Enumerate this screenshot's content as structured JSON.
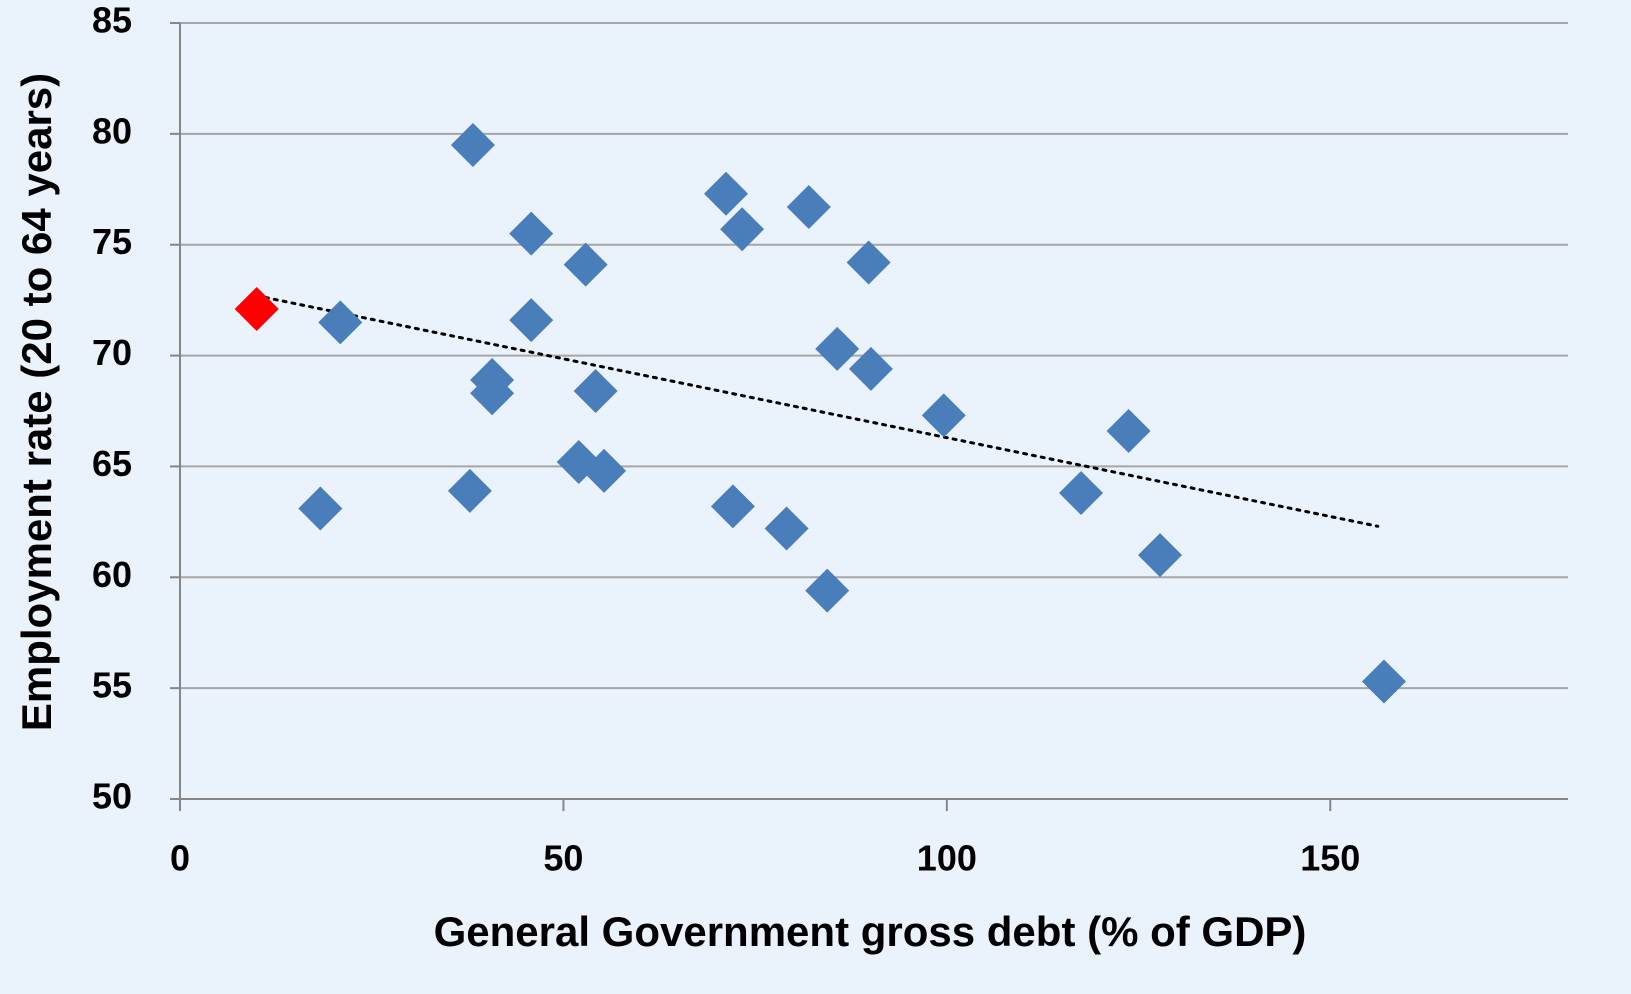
{
  "chart_data": {
    "type": "scatter",
    "xlabel": "General Government gross debt (% of GDP)",
    "ylabel": "Employment rate (20 to 64 years)",
    "xlim": [
      0,
      181
    ],
    "xticks": [
      0,
      50,
      100,
      150
    ],
    "ylim": [
      50,
      85
    ],
    "yticks": [
      50,
      55,
      60,
      65,
      70,
      75,
      80,
      85
    ],
    "grid": true,
    "marker": "diamond",
    "series": [
      {
        "color": "#4a7ebb",
        "x": [
          20.9,
          18.3,
          38.2,
          37.8,
          45.8,
          45.8,
          40.7,
          40.7,
          52.9,
          54.2,
          52.0,
          55.3,
          71.2,
          73.3,
          72.1,
          82.0,
          79.1,
          84.4,
          85.7,
          89.8,
          90.1,
          99.6,
          123.7,
          117.5,
          127.8,
          157.0
        ],
        "values": [
          71.5,
          63.1,
          79.5,
          63.9,
          75.5,
          71.6,
          68.9,
          68.3,
          74.1,
          68.4,
          65.2,
          64.8,
          77.3,
          75.7,
          63.2,
          76.7,
          62.2,
          59.4,
          70.3,
          74.2,
          69.4,
          67.3,
          66.6,
          63.8,
          61.0,
          55.3
        ]
      },
      {
        "color": "#ff0000",
        "x": [
          10.0
        ],
        "values": [
          72.1
        ]
      }
    ],
    "trendline": {
      "color": "#000000",
      "style": "dotted",
      "x": [
        10.0,
        156.2
      ],
      "values": [
        72.7,
        62.3
      ]
    }
  }
}
